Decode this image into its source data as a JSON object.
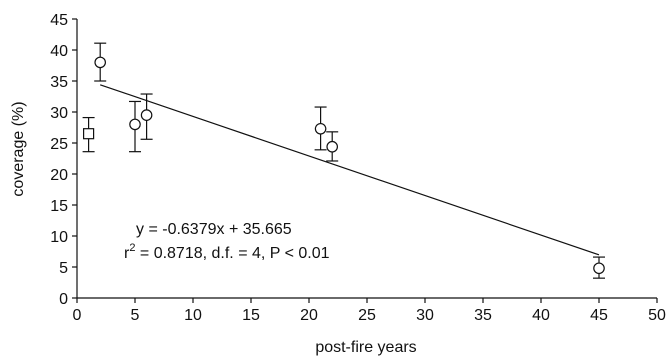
{
  "chart_data": {
    "type": "scatter",
    "xlabel": "post-fire years",
    "ylabel": "coverage (%)",
    "xlim": [
      0,
      50
    ],
    "ylim": [
      0,
      45
    ],
    "x_ticks": [
      0,
      5,
      10,
      15,
      20,
      25,
      30,
      35,
      40,
      45,
      50
    ],
    "y_ticks": [
      0,
      5,
      10,
      15,
      20,
      25,
      30,
      35,
      40,
      45
    ],
    "grid": false,
    "series": [
      {
        "marker": "square",
        "points": [
          {
            "x": 1,
            "y": 26.5,
            "err_low": 23.6,
            "err_high": 29.1
          }
        ]
      },
      {
        "marker": "circle",
        "points": [
          {
            "x": 2,
            "y": 38.0,
            "err_low": 35.0,
            "err_high": 41.1
          },
          {
            "x": 5,
            "y": 28.0,
            "err_low": 23.6,
            "err_high": 31.7
          },
          {
            "x": 6,
            "y": 29.5,
            "err_low": 25.6,
            "err_high": 32.9
          },
          {
            "x": 21,
            "y": 27.3,
            "err_low": 23.9,
            "err_high": 30.8
          },
          {
            "x": 22,
            "y": 24.4,
            "err_low": 22.1,
            "err_high": 26.8
          },
          {
            "x": 45,
            "y": 4.8,
            "err_low": 3.2,
            "err_high": 6.6
          }
        ]
      }
    ],
    "regression": {
      "slope": -0.6379,
      "intercept": 35.665,
      "x_start": 2,
      "x_end": 45
    },
    "annotations": {
      "equation": "y = -0.6379x + 35.665",
      "r_symbol": "r",
      "r_exponent": "2",
      "stats": " = 0.8718, d.f. = 4, P < 0.01"
    }
  }
}
